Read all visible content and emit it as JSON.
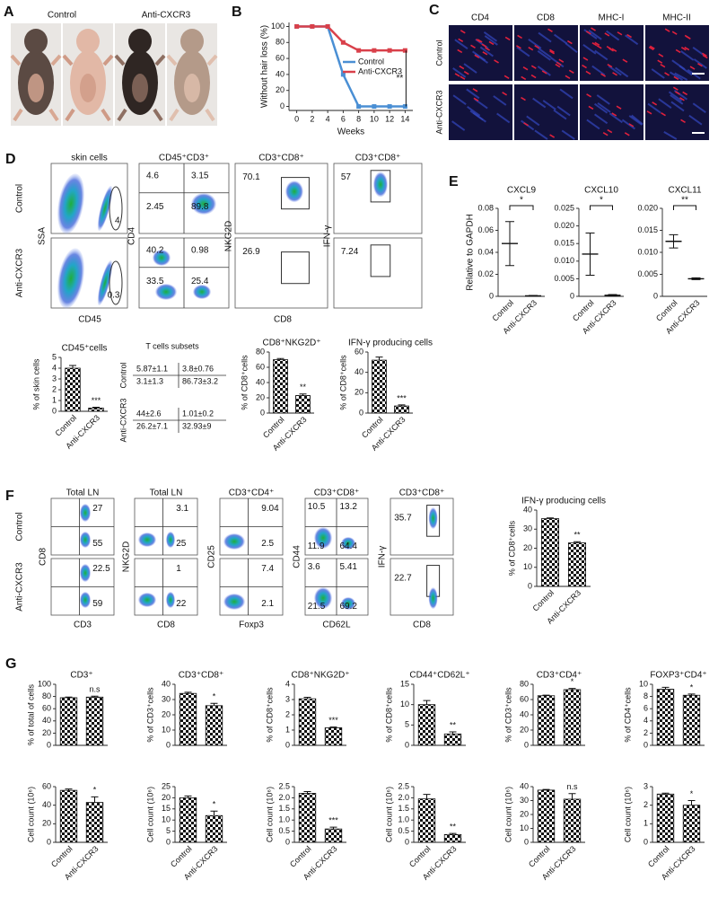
{
  "figure": {
    "panel_labels": [
      "A",
      "B",
      "C",
      "D",
      "E",
      "F",
      "G"
    ],
    "a": {
      "labels": [
        "Control",
        "Anti-CXCR3"
      ]
    },
    "c": {
      "columns": [
        "CD4",
        "CD8",
        "MHC-I",
        "MHC-II"
      ],
      "rows": [
        "Control",
        "Anti-CXCR3"
      ]
    },
    "d": {
      "rows": [
        "Control",
        "Anti-CXCR3"
      ],
      "titles": [
        "skin cells",
        "CD45⁺CD3⁺",
        "CD3⁺CD8⁺",
        "CD3⁺CD8⁺"
      ],
      "y_labels": [
        "SSA",
        "CD4",
        "NKG2D",
        "IFN-γ"
      ],
      "x_labels": [
        "CD45",
        "CD8"
      ],
      "gates": [
        [
          [
            "4"
          ],
          [
            "4.6",
            "3.15",
            "2.45",
            "89.8"
          ],
          [
            "70.1"
          ],
          [
            "57"
          ]
        ],
        [
          [
            "0.3"
          ],
          [
            "40.2",
            "0.98",
            "33.5",
            "25.4"
          ],
          [
            "26.9"
          ],
          [
            "7.24"
          ]
        ]
      ],
      "table": {
        "title": "T cells subsets",
        "rows": [
          "Control",
          "Anti-CXCR3"
        ],
        "cells": [
          [
            "5.87±1.1",
            "3.8±0.76",
            "3.1±1.3",
            "86.73±3.2"
          ],
          [
            "44±2.6",
            "1.01±0.2",
            "26.2±7.1",
            "32.93±9"
          ]
        ]
      }
    },
    "f": {
      "rows": [
        "Control",
        "Anti-CXCR3"
      ],
      "titles": [
        "Total LN",
        "Total LN",
        "CD3⁺CD4⁺",
        "CD3⁺CD8⁺",
        "CD3⁺CD8⁺"
      ],
      "y_labels": [
        "CD8",
        "NKG2D",
        "CD25",
        "CD44",
        "IFN-γ"
      ],
      "x_labels": [
        "CD3",
        "CD8",
        "Foxp3",
        "CD62L",
        "CD8"
      ],
      "gates": [
        [
          [
            "27",
            "55"
          ],
          [
            "3.1",
            "25"
          ],
          [
            "9.04",
            "2.5"
          ],
          [
            "10.5",
            "13.2",
            "11.9",
            "64.4"
          ],
          [
            "35.7"
          ]
        ],
        [
          [
            "22.5",
            "59"
          ],
          [
            "1",
            "22"
          ],
          [
            "7.4",
            "2.1"
          ],
          [
            "3.6",
            "5.41",
            "21.5",
            "69.2"
          ],
          [
            "22.7"
          ]
        ]
      ]
    }
  },
  "chart_data": [
    {
      "type": "line",
      "x": [
        0,
        2,
        4,
        6,
        8,
        10,
        12,
        14
      ],
      "xlim": [
        -1,
        15
      ],
      "xticks": [
        0,
        2,
        4,
        6,
        8,
        10,
        12,
        14
      ],
      "ylim": [
        -5,
        105
      ],
      "yticks": [
        0,
        20,
        40,
        60,
        80,
        100
      ],
      "xlabel": "Weeks",
      "ylabel": "Without hair loss (%)",
      "legend": "right",
      "annotation": "**",
      "series": [
        {
          "name": "Control",
          "color": "#4a8fd4",
          "values": [
            100,
            100,
            100,
            40,
            0,
            0,
            0,
            0
          ]
        },
        {
          "name": "Anti-CXCR3",
          "color": "#d9404a",
          "values": [
            100,
            100,
            100,
            80,
            70,
            70,
            70,
            70
          ]
        }
      ]
    },
    {
      "type": "dot",
      "title": "CXCL9",
      "ylabel": "Relative to GAPDH",
      "categories": [
        "Control",
        "Anti-CXCR3"
      ],
      "values": [
        0.048,
        0.0005
      ],
      "errors": [
        0.02,
        0.0003
      ],
      "ylim": [
        0,
        0.08
      ],
      "yticks": [
        0,
        0.02,
        0.04,
        0.06,
        0.08
      ],
      "annotation": "*"
    },
    {
      "type": "dot",
      "title": "CXCL10",
      "categories": [
        "Control",
        "Anti-CXCR3"
      ],
      "values": [
        0.012,
        0.0003
      ],
      "errors": [
        0.006,
        0.0002
      ],
      "ylim": [
        0,
        0.025
      ],
      "yticks": [
        0,
        0.005,
        {
          "value": 0.01,
          "label": "0.010"
        },
        0.015,
        {
          "value": 0.02,
          "label": "0.020"
        },
        0.025
      ],
      "annotation": "*"
    },
    {
      "type": "dot",
      "title": "CXCL11",
      "categories": [
        "Control",
        "Anti-CXCR3"
      ],
      "values": [
        0.0125,
        0.004
      ],
      "errors": [
        0.0015,
        0.0002
      ],
      "ylim": [
        0,
        0.02
      ],
      "yticks": [
        0,
        0.005,
        {
          "value": 0.01,
          "label": "0.010"
        },
        0.015,
        {
          "value": 0.02,
          "label": "0.020"
        }
      ],
      "annotation": "**"
    },
    {
      "type": "bar",
      "title": "CD45⁺cells",
      "ylabel": "% of skin cells",
      "categories": [
        "Control",
        "Anti-CXCR3"
      ],
      "values": [
        4,
        0.3
      ],
      "errors": [
        0.25,
        0.08
      ],
      "ylim": [
        0,
        5
      ],
      "yticks": [
        0,
        1,
        2,
        3,
        4,
        5
      ],
      "annotation": "***"
    },
    {
      "type": "bar",
      "title": "CD8⁺NKG2D⁺",
      "ylabel": "% of CD8⁺cells",
      "categories": [
        "Control",
        "Anti-CXCR3"
      ],
      "values": [
        70,
        23
      ],
      "errors": [
        1.5,
        2
      ],
      "ylim": [
        0,
        80
      ],
      "yticks": [
        0,
        20,
        40,
        60,
        80
      ],
      "annotation": "**"
    },
    {
      "type": "bar",
      "title": "IFN-γ producing cells",
      "ylabel": "% of CD8⁺cells",
      "categories": [
        "Control",
        "Anti-CXCR3"
      ],
      "values": [
        52,
        7
      ],
      "errors": [
        3,
        1
      ],
      "ylim": [
        0,
        60
      ],
      "yticks": [
        0,
        20,
        40,
        60
      ],
      "annotation": "***"
    },
    {
      "type": "bar",
      "title": "IFN-γ producing cells",
      "ylabel": "% of CD8⁺cells",
      "categories": [
        "Control",
        "Anti-CXCR3"
      ],
      "values": [
        35.5,
        22.8
      ],
      "errors": [
        0.4,
        0.6
      ],
      "ylim": [
        0,
        40
      ],
      "yticks": [
        0,
        10,
        20,
        30,
        40
      ],
      "annotation": "**"
    },
    {
      "type": "bar",
      "title": "CD3⁺",
      "ylabel": "% of total of cells",
      "values": [
        78,
        79
      ],
      "errors": [
        1,
        1.5
      ],
      "ylim": [
        0,
        100
      ],
      "yticks": [
        0,
        20,
        40,
        60,
        80,
        100
      ],
      "annotation": "n.s"
    },
    {
      "type": "bar",
      "title": "CD3⁺CD8⁺",
      "ylabel": "% of CD3⁺cells",
      "values": [
        34,
        26
      ],
      "errors": [
        0.8,
        1.5
      ],
      "ylim": [
        0,
        40
      ],
      "yticks": [
        0,
        10,
        20,
        30,
        40
      ],
      "annotation": "*"
    },
    {
      "type": "bar",
      "title": "CD8⁺NKG2D⁺",
      "ylabel": "% of CD8⁺cells",
      "values": [
        3.05,
        1.15
      ],
      "errors": [
        0.1,
        0.05
      ],
      "ylim": [
        0,
        4
      ],
      "yticks": [
        0,
        1,
        2,
        3,
        4
      ],
      "annotation": "***"
    },
    {
      "type": "bar",
      "title": "CD44⁺CD62L⁺",
      "ylabel": "% of CD8⁺cells",
      "values": [
        10,
        2.8
      ],
      "errors": [
        1,
        0.5
      ],
      "ylim": [
        0,
        15
      ],
      "yticks": [
        0,
        5,
        10,
        15
      ],
      "annotation": "**"
    },
    {
      "type": "bar",
      "title": "CD3⁺CD4⁺",
      "ylabel": "% of CD3⁺cells",
      "values": [
        65,
        73
      ],
      "errors": [
        0.8,
        1.5
      ],
      "ylim": [
        0,
        80
      ],
      "yticks": [
        0,
        20,
        40,
        60,
        80
      ],
      "annotation": "*"
    },
    {
      "type": "bar",
      "title": "FOXP3⁺CD4⁺",
      "ylabel": "% of CD4⁺cells",
      "values": [
        9.2,
        8.2
      ],
      "errors": [
        0.3,
        0.2
      ],
      "ylim": [
        0,
        10
      ],
      "yticks": [
        0,
        2,
        4,
        6,
        8,
        10
      ],
      "annotation": "*"
    },
    {
      "type": "bar",
      "ylabel": "Cell count (10⁶)",
      "categories": [
        "Control",
        "Anti-CXCR3"
      ],
      "values": [
        56,
        43
      ],
      "errors": [
        1.5,
        6
      ],
      "ylim": [
        0,
        60
      ],
      "yticks": [
        0,
        20,
        40,
        60
      ],
      "annotation": "*"
    },
    {
      "type": "bar",
      "ylabel": "Cell count (10⁶)",
      "categories": [
        "Control",
        "Anti-CXCR3"
      ],
      "values": [
        20,
        12
      ],
      "errors": [
        0.8,
        2
      ],
      "ylim": [
        0,
        25
      ],
      "yticks": [
        0,
        5,
        10,
        15,
        20,
        25
      ],
      "annotation": "*"
    },
    {
      "type": "bar",
      "ylabel": "Cell count (10⁶)",
      "categories": [
        "Control",
        "Anti-CXCR3"
      ],
      "values": [
        2.2,
        0.6
      ],
      "errors": [
        0.08,
        0.08
      ],
      "ylim": [
        0,
        2.5
      ],
      "yticks": [
        0,
        0.5,
        {
          "value": 1,
          "label": "1.0"
        },
        1.5,
        {
          "value": 2,
          "label": "2.0"
        },
        2.5
      ],
      "annotation": "***"
    },
    {
      "type": "bar",
      "ylabel": "Cell count (10⁶)",
      "categories": [
        "Control",
        "Anti-CXCR3"
      ],
      "values": [
        1.95,
        0.35
      ],
      "errors": [
        0.2,
        0.05
      ],
      "ylim": [
        0,
        2.5
      ],
      "yticks": [
        0,
        0.5,
        {
          "value": 1,
          "label": "1.0"
        },
        1.5,
        {
          "value": 2,
          "label": "2.0"
        },
        2.5
      ],
      "annotation": "**"
    },
    {
      "type": "bar",
      "ylabel": "Cell count (10⁶)",
      "categories": [
        "Control",
        "Anti-CXCR3"
      ],
      "values": [
        37.5,
        31
      ],
      "errors": [
        0.5,
        4
      ],
      "ylim": [
        0,
        40
      ],
      "yticks": [
        0,
        10,
        20,
        30,
        40
      ],
      "annotation": "n.s"
    },
    {
      "type": "bar",
      "ylabel": "Cell count (10⁶)",
      "categories": [
        "Control",
        "Anti-CXCR3"
      ],
      "values": [
        2.6,
        2
      ],
      "errors": [
        0.05,
        0.25
      ],
      "ylim": [
        0,
        3
      ],
      "yticks": [
        0,
        1,
        2,
        3
      ],
      "annotation": "*"
    }
  ]
}
